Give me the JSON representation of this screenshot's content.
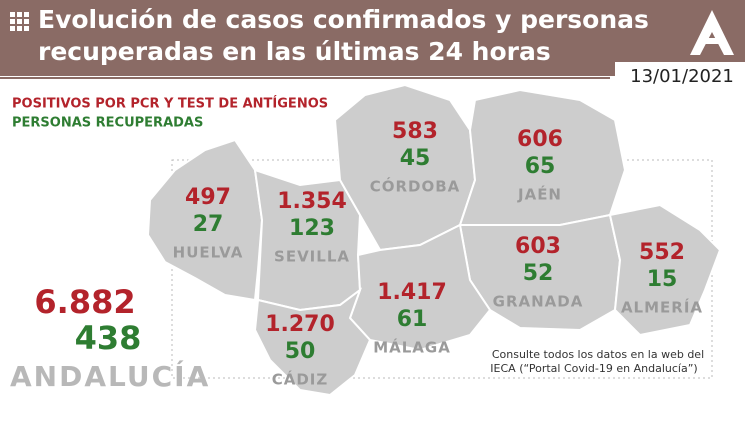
{
  "header": {
    "title_line1": "Evolución de casos confirmados y personas",
    "title_line2": "recuperadas en las últimas 24 horas",
    "date": "13/01/2021"
  },
  "legend": {
    "positives": "POSITIVOS POR PCR Y TEST DE ANTÍGENOS",
    "recovered": "PERSONAS RECUPERADAS"
  },
  "provinces": [
    {
      "name": "HUELVA",
      "positives": "497",
      "recovered": "27"
    },
    {
      "name": "SEVILLA",
      "positives": "1.354",
      "recovered": "123"
    },
    {
      "name": "CÓRDOBA",
      "positives": "583",
      "recovered": "45"
    },
    {
      "name": "JAÉN",
      "positives": "606",
      "recovered": "65"
    },
    {
      "name": "GRANADA",
      "positives": "603",
      "recovered": "52"
    },
    {
      "name": "ALMERÍA",
      "positives": "552",
      "recovered": "15"
    },
    {
      "name": "MÁLAGA",
      "positives": "1.417",
      "recovered": "61"
    },
    {
      "name": "CÁDIZ",
      "positives": "1.270",
      "recovered": "50"
    }
  ],
  "total": {
    "name": "ANDALUCÍA",
    "positives": "6.882",
    "recovered": "438"
  },
  "note": {
    "line1": "Consulte todos los datos en la web del",
    "line2": "IECA (“Portal Covid-19 en Andalucía”)"
  }
}
